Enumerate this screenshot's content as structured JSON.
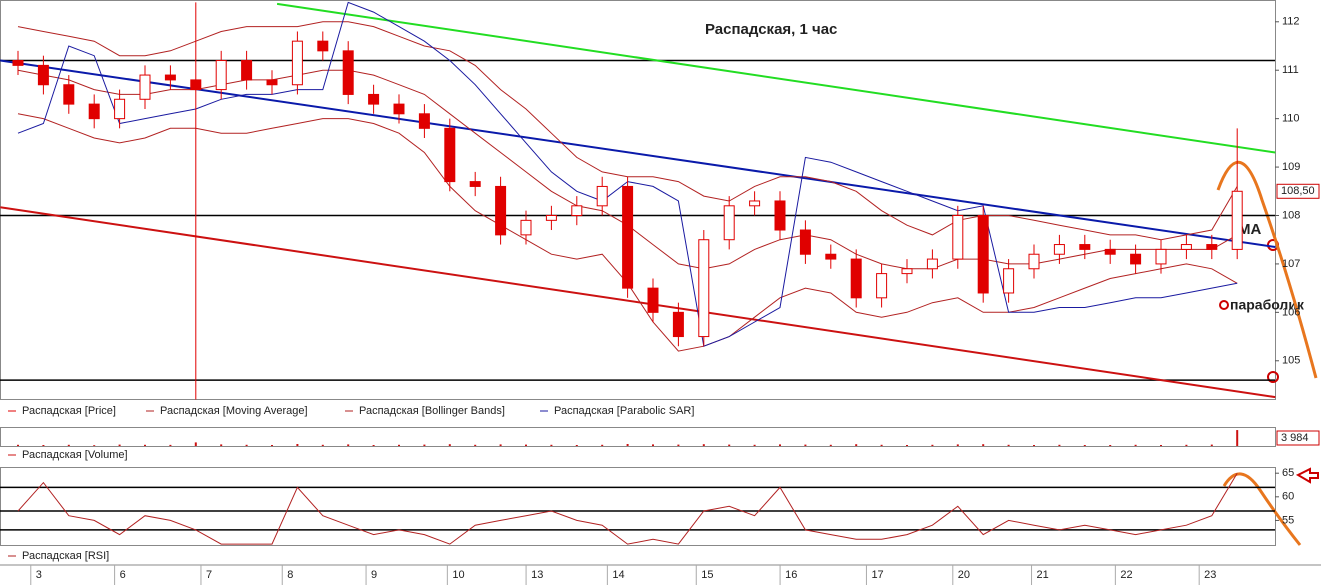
{
  "chart_data": [
    {
      "type": "candlestick",
      "title": "Распадская,    1 час",
      "annotations": [
        "МА",
        "параболик"
      ],
      "series": [
        {
          "name": "Распадская [Price]",
          "color": "#e00000",
          "opens": [
            111.2,
            111.1,
            110.7,
            110.3,
            110.0,
            110.4,
            110.9,
            110.8,
            110.6,
            111.2,
            110.8,
            110.7,
            111.6,
            111.4,
            110.5,
            110.3,
            110.1,
            109.8,
            108.7,
            108.6,
            107.6,
            107.9,
            108.0,
            108.2,
            108.6,
            106.5,
            106.0,
            105.5,
            107.5,
            108.2,
            108.3,
            107.7,
            107.2,
            107.1,
            106.3,
            106.8,
            106.9,
            107.1,
            108.0,
            106.4,
            106.9,
            107.2,
            107.4,
            107.3,
            107.2,
            107.0,
            107.3,
            107.4,
            107.3
          ],
          "highs": [
            111.4,
            111.3,
            110.9,
            110.5,
            110.6,
            111.1,
            111.1,
            112.4,
            111.4,
            111.4,
            111.0,
            111.8,
            111.8,
            111.6,
            110.7,
            110.5,
            110.3,
            110.0,
            108.9,
            108.8,
            108.1,
            108.2,
            108.4,
            108.8,
            108.8,
            106.7,
            106.2,
            107.7,
            108.4,
            108.5,
            108.5,
            107.9,
            107.4,
            107.3,
            107.0,
            107.1,
            107.3,
            108.2,
            108.2,
            107.1,
            107.4,
            107.6,
            107.6,
            107.5,
            107.4,
            107.5,
            107.6,
            107.6,
            109.8
          ],
          "lows": [
            110.9,
            110.5,
            110.1,
            109.8,
            109.8,
            110.2,
            110.6,
            104.2,
            110.4,
            110.6,
            110.5,
            110.5,
            111.2,
            110.3,
            110.1,
            109.9,
            109.6,
            108.5,
            108.4,
            107.4,
            107.4,
            107.7,
            107.8,
            108.0,
            106.3,
            105.8,
            105.3,
            105.3,
            107.3,
            108.0,
            107.5,
            107.0,
            106.9,
            106.1,
            106.1,
            106.6,
            106.7,
            106.9,
            106.2,
            106.2,
            106.7,
            107.0,
            107.1,
            107.0,
            106.8,
            106.8,
            107.1,
            107.1,
            107.1
          ],
          "closes": [
            111.1,
            110.7,
            110.3,
            110.0,
            110.4,
            110.9,
            110.8,
            110.6,
            111.2,
            110.8,
            110.7,
            111.6,
            111.4,
            110.5,
            110.3,
            110.1,
            109.8,
            108.7,
            108.6,
            107.6,
            107.9,
            108.0,
            108.2,
            108.6,
            106.5,
            106.0,
            105.5,
            107.5,
            108.2,
            108.3,
            107.7,
            107.2,
            107.1,
            106.3,
            106.8,
            106.9,
            107.1,
            108.0,
            106.4,
            106.9,
            107.2,
            107.4,
            107.3,
            107.2,
            107.0,
            107.3,
            107.4,
            107.3,
            108.5
          ]
        },
        {
          "name": "Распадская [Moving Average]",
          "color": "#b22222",
          "values": [
            111.0,
            110.9,
            110.8,
            110.6,
            110.5,
            110.5,
            110.6,
            110.6,
            110.7,
            110.8,
            110.8,
            110.9,
            111.0,
            111.0,
            110.9,
            110.7,
            110.5,
            110.1,
            109.7,
            109.3,
            108.9,
            108.5,
            108.2,
            108.1,
            107.8,
            107.4,
            107.0,
            106.9,
            107.0,
            107.3,
            107.5,
            107.6,
            107.5,
            107.2,
            107.0,
            106.9,
            106.9,
            107.1,
            107.1,
            107.0,
            107.0,
            107.1,
            107.2,
            107.3,
            107.3,
            107.3,
            107.3,
            107.3,
            107.6
          ]
        },
        {
          "name": "Распадская [Bollinger Bands]",
          "color": "#b22222",
          "upper": [
            111.9,
            111.8,
            111.7,
            111.6,
            111.3,
            111.3,
            111.4,
            111.6,
            111.8,
            111.9,
            111.9,
            111.9,
            112.0,
            112.0,
            111.9,
            111.7,
            111.5,
            111.4,
            111.1,
            110.6,
            110.2,
            109.7,
            109.2,
            108.9,
            108.8,
            108.8,
            108.7,
            108.4,
            108.3,
            108.6,
            108.8,
            108.8,
            108.7,
            108.5,
            108.1,
            107.8,
            107.6,
            107.9,
            108.0,
            108.0,
            107.9,
            107.8,
            107.7,
            107.6,
            107.6,
            107.5,
            107.6,
            107.7,
            108.6
          ],
          "lower": [
            110.1,
            110.0,
            109.8,
            109.6,
            109.5,
            109.6,
            109.8,
            109.8,
            109.7,
            109.7,
            109.8,
            109.9,
            110.0,
            110.0,
            109.9,
            109.7,
            109.3,
            108.6,
            108.1,
            107.8,
            107.5,
            107.2,
            107.1,
            107.2,
            106.6,
            105.8,
            105.2,
            105.3,
            105.5,
            105.9,
            106.3,
            106.5,
            106.4,
            106.0,
            105.9,
            106.0,
            106.2,
            106.3,
            106.0,
            106.0,
            106.1,
            106.3,
            106.5,
            106.7,
            106.8,
            106.9,
            107.0,
            106.9,
            106.6
          ]
        },
        {
          "name": "Распадская [Parabolic SAR]",
          "color": "#1a1aa0",
          "values": [
            109.7,
            109.9,
            111.5,
            111.3,
            109.9,
            110.0,
            110.1,
            110.2,
            110.4,
            110.5,
            110.5,
            110.6,
            110.6,
            112.4,
            112.2,
            111.9,
            111.6,
            111.2,
            110.7,
            110.1,
            109.5,
            108.9,
            108.5,
            108.3,
            108.7,
            108.6,
            108.3,
            105.3,
            105.5,
            105.8,
            106.1,
            109.2,
            109.1,
            108.9,
            108.7,
            108.5,
            108.3,
            108.1,
            108.2,
            106.0,
            106.0,
            106.1,
            106.1,
            106.2,
            106.3,
            106.3,
            106.4,
            106.5,
            106.6
          ]
        }
      ],
      "trendlines": [
        {
          "color": "#22dd22",
          "x": [
            10.2,
            49.5
          ],
          "y": [
            112.37,
            109.3
          ]
        },
        {
          "color": "#0a1aaa",
          "x": [
            -0.7,
            49.5
          ],
          "y": [
            111.2,
            107.35
          ]
        },
        {
          "color": "#cc1111",
          "x": [
            -0.7,
            49.5
          ],
          "y": [
            108.17,
            104.25
          ]
        }
      ],
      "hlines": [
        111.2,
        108.0,
        104.6
      ],
      "last_label": "108,50",
      "last_value": 108.5,
      "ylim": [
        104.19,
        112.45
      ],
      "yticks": [
        105,
        106,
        107,
        108,
        109,
        110,
        111,
        112
      ]
    },
    {
      "type": "bar",
      "series": [
        {
          "name": "Распадская [Volume]",
          "color": "#cc1111",
          "values": [
            300,
            250,
            300,
            200,
            350,
            300,
            280,
            900,
            400,
            300,
            250,
            500,
            300,
            400,
            250,
            300,
            350,
            450,
            300,
            400,
            350,
            300,
            250,
            300,
            500,
            400,
            350,
            450,
            350,
            300,
            400,
            350,
            300,
            450,
            300,
            250,
            300,
            400,
            450,
            300,
            250,
            300,
            250,
            250,
            300,
            250,
            300,
            350,
            3984
          ]
        }
      ],
      "last_label": "3 984",
      "ylim": [
        0,
        4500
      ]
    },
    {
      "type": "line",
      "series": [
        {
          "name": "Распадская [RSI]",
          "color": "#b22222",
          "values": [
            57,
            63,
            56,
            55,
            52,
            56,
            55,
            53,
            50,
            50,
            50,
            62,
            56,
            54,
            52,
            53,
            52,
            50,
            54,
            55,
            56,
            57,
            55,
            54,
            50,
            51,
            50,
            57,
            58,
            56,
            62,
            53,
            52,
            51,
            51,
            52,
            54,
            58,
            52,
            55,
            54,
            53,
            54,
            53,
            52,
            53,
            54,
            56,
            65
          ]
        }
      ],
      "hlines": [
        62,
        57,
        53
      ],
      "ylim": [
        49.8,
        66.1
      ],
      "yticks": [
        55,
        60,
        65
      ],
      "xticks": [
        {
          "value": 0.7,
          "label": "3"
        },
        {
          "value": 4.0,
          "label": "6"
        },
        {
          "value": 7.4,
          "label": "7"
        },
        {
          "value": 10.6,
          "label": "8"
        },
        {
          "value": 13.9,
          "label": "9"
        },
        {
          "value": 17.1,
          "label": "10"
        },
        {
          "value": 20.2,
          "label": "13"
        },
        {
          "value": 23.4,
          "label": "14"
        },
        {
          "value": 26.9,
          "label": "15"
        },
        {
          "value": 30.2,
          "label": "16"
        },
        {
          "value": 33.6,
          "label": "17"
        },
        {
          "value": 37.0,
          "label": "20"
        },
        {
          "value": 40.1,
          "label": "21"
        },
        {
          "value": 43.4,
          "label": "22"
        },
        {
          "value": 46.7,
          "label": "23"
        }
      ]
    }
  ]
}
